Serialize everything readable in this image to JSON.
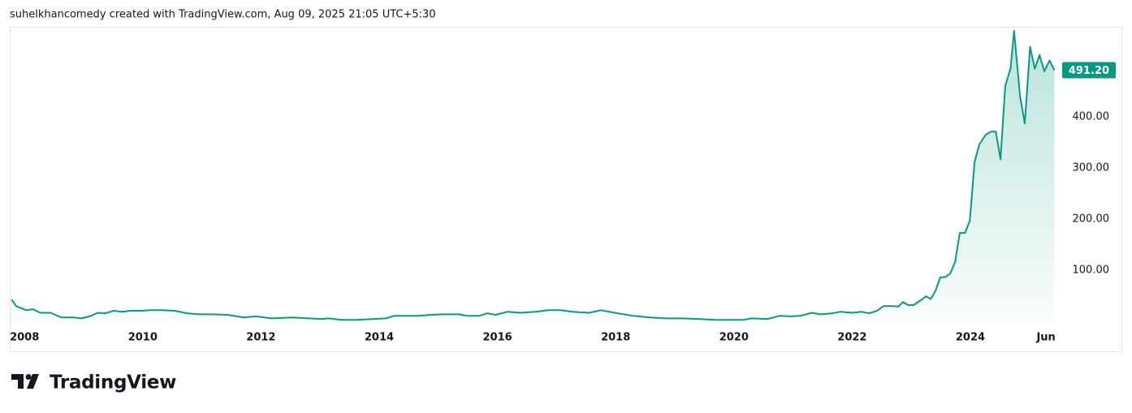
{
  "brand": "TradingView",
  "chart_data": {
    "type": "area",
    "title": "suhelkhancomedy created with TradingView.com, Aug 09, 2025 21:05 UTC+5:30",
    "color": "#089981",
    "x": [
      2007.78,
      2007.86,
      2008.03,
      2008.14,
      2008.27,
      2008.44,
      2008.62,
      2008.82,
      2008.96,
      2009.1,
      2009.24,
      2009.37,
      2009.51,
      2009.65,
      2009.79,
      2009.99,
      2010.13,
      2010.31,
      2010.54,
      2010.75,
      2010.95,
      2011.16,
      2011.43,
      2011.71,
      2011.91,
      2012.19,
      2012.53,
      2012.81,
      2013.01,
      2013.15,
      2013.36,
      2013.63,
      2013.91,
      2014.11,
      2014.25,
      2014.52,
      2014.66,
      2014.87,
      2015.07,
      2015.35,
      2015.49,
      2015.69,
      2015.83,
      2015.97,
      2016.17,
      2016.38,
      2016.65,
      2016.86,
      2017.07,
      2017.27,
      2017.55,
      2017.75,
      2018.03,
      2018.3,
      2018.58,
      2018.85,
      2019.13,
      2019.4,
      2019.68,
      2019.95,
      2020.16,
      2020.29,
      2020.57,
      2020.77,
      2020.98,
      2021.12,
      2021.32,
      2021.46,
      2021.67,
      2021.8,
      2022.01,
      2022.15,
      2022.29,
      2022.42,
      2022.53,
      2022.7,
      2022.78,
      2022.86,
      2022.95,
      2023.04,
      2023.14,
      2023.25,
      2023.33,
      2023.41,
      2023.49,
      2023.58,
      2023.66,
      2023.74,
      2023.82,
      2023.91,
      2023.99,
      2024.07,
      2024.15,
      2024.26,
      2024.35,
      2024.43,
      2024.51,
      2024.59,
      2024.68,
      2024.74,
      2024.84,
      2024.92,
      2025.01,
      2025.09,
      2025.17,
      2025.25,
      2025.34,
      2025.42
    ],
    "values": [
      43,
      30,
      22,
      24,
      17,
      17,
      8,
      8,
      6,
      10,
      17,
      16,
      21,
      19,
      21,
      21,
      22,
      22,
      21,
      16,
      14,
      14,
      13,
      8,
      10,
      6,
      8,
      6,
      5,
      6,
      3,
      3,
      5,
      6,
      11,
      11,
      11,
      13,
      14,
      14,
      11,
      11,
      16,
      13,
      19,
      17,
      19,
      22,
      22,
      19,
      17,
      22,
      16,
      11,
      8,
      6,
      6,
      5,
      3,
      3,
      3,
      6,
      5,
      11,
      10,
      11,
      17,
      14,
      16,
      19,
      17,
      19,
      16,
      21,
      30,
      30,
      29,
      38,
      32,
      32,
      40,
      49,
      44,
      60,
      86,
      87,
      94,
      116,
      173,
      173,
      197,
      311,
      346,
      365,
      371,
      371,
      317,
      460,
      495,
      568,
      441,
      387,
      537,
      494,
      521,
      489,
      510,
      491.2
    ],
    "last_value_label": "491.20",
    "xlim": [
      2007.75,
      2025.58
    ],
    "xticks": [
      2008,
      2010,
      2012,
      2014,
      2016,
      2018,
      2020,
      2022,
      2024,
      {
        "value": 2025.28,
        "label": "Jun"
      }
    ],
    "ylim": [
      -6,
      576
    ],
    "yticks": [
      {
        "value": 100,
        "label": "100.00"
      },
      {
        "value": 200,
        "label": "200.00"
      },
      {
        "value": 300,
        "label": "300.00"
      },
      {
        "value": 400,
        "label": "400.00"
      }
    ]
  }
}
